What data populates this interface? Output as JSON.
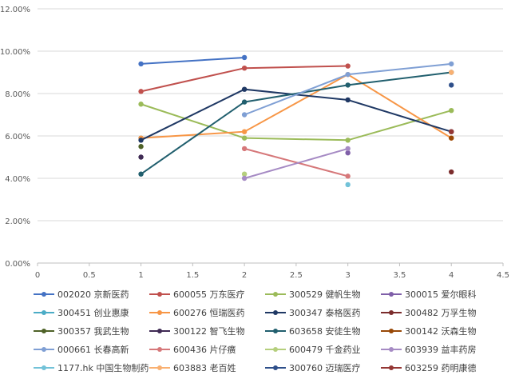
{
  "chart_data": {
    "type": "scatter",
    "xlim": [
      0,
      4.5
    ],
    "ylim": [
      0,
      12
    ],
    "x_ticks": [
      "0",
      "0.5",
      "1",
      "1.5",
      "2",
      "2.5",
      "3",
      "3.5",
      "4",
      "4.5"
    ],
    "y_ticks": [
      "0.00%",
      "2.00%",
      "4.00%",
      "6.00%",
      "8.00%",
      "10.00%",
      "12.00%"
    ],
    "grid": "horizontal",
    "legend_position": "bottom",
    "series": [
      {
        "name": "002020 京新医药",
        "color": "#4472c4",
        "points": [
          [
            1,
            9.4
          ],
          [
            2,
            9.7
          ]
        ]
      },
      {
        "name": "600055 万东医疗",
        "color": "#c0504d",
        "points": [
          [
            1,
            8.1
          ],
          [
            2,
            9.2
          ],
          [
            3,
            9.3
          ]
        ]
      },
      {
        "name": "300529 健帆生物",
        "color": "#9bbb59",
        "points": [
          [
            1,
            7.5
          ],
          [
            2,
            5.9
          ],
          [
            3,
            5.8
          ],
          [
            4,
            7.2
          ]
        ]
      },
      {
        "name": "300015 爱尔眼科",
        "color": "#7f5fa8",
        "points": [
          [
            3,
            5.2
          ]
        ]
      },
      {
        "name": "300451 创业惠康",
        "color": "#4bacc6",
        "points": [
          [
            1,
            5.9
          ]
        ]
      },
      {
        "name": "600276 恒瑞医药",
        "color": "#f79646",
        "points": [
          [
            1,
            5.9
          ],
          [
            2,
            6.2
          ],
          [
            3,
            8.9
          ],
          [
            4,
            5.9
          ]
        ]
      },
      {
        "name": "300347 泰格医药",
        "color": "#1f3864",
        "points": [
          [
            1,
            5.8
          ],
          [
            2,
            8.2
          ],
          [
            3,
            7.7
          ],
          [
            4,
            6.2
          ]
        ]
      },
      {
        "name": "300482 万孚生物",
        "color": "#7b2c2c",
        "points": [
          [
            4,
            4.3
          ]
        ]
      },
      {
        "name": "300357 我武生物",
        "color": "#4f6228",
        "points": [
          [
            1,
            5.5
          ]
        ]
      },
      {
        "name": "300122 智飞生物",
        "color": "#3f2a54",
        "points": [
          [
            1,
            5.0
          ]
        ]
      },
      {
        "name": "603658 安徒生物",
        "color": "#215f6e",
        "points": [
          [
            1,
            4.2
          ],
          [
            2,
            7.6
          ],
          [
            3,
            8.4
          ],
          [
            4,
            9.0
          ]
        ]
      },
      {
        "name": "300142 沃森生物",
        "color": "#984807",
        "points": [
          [
            4,
            5.9
          ]
        ]
      },
      {
        "name": "000661 长春高新",
        "color": "#7f9fd4",
        "points": [
          [
            2,
            7.0
          ],
          [
            3,
            8.9
          ],
          [
            4,
            9.4
          ]
        ]
      },
      {
        "name": "600436 片仔癀",
        "color": "#d6787a",
        "points": [
          [
            2,
            5.4
          ],
          [
            3,
            4.1
          ]
        ]
      },
      {
        "name": "600479 千金药业",
        "color": "#b5cf7d",
        "points": [
          [
            2,
            4.2
          ]
        ]
      },
      {
        "name": "603939 益丰药房",
        "color": "#a68bc4",
        "points": [
          [
            2,
            4.0
          ],
          [
            3,
            5.4
          ]
        ]
      },
      {
        "name": "1177.hk 中国生物制药",
        "color": "#72c2d8",
        "points": [
          [
            3,
            3.7
          ]
        ]
      },
      {
        "name": "603883 老百姓",
        "color": "#f9b071",
        "points": [
          [
            4,
            9.0
          ]
        ]
      },
      {
        "name": "300760 迈瑞医疗",
        "color": "#2e4f8a",
        "points": [
          [
            4,
            8.4
          ]
        ]
      },
      {
        "name": "603259 药明康德",
        "color": "#943634",
        "points": [
          [
            4,
            6.2
          ]
        ]
      }
    ]
  }
}
